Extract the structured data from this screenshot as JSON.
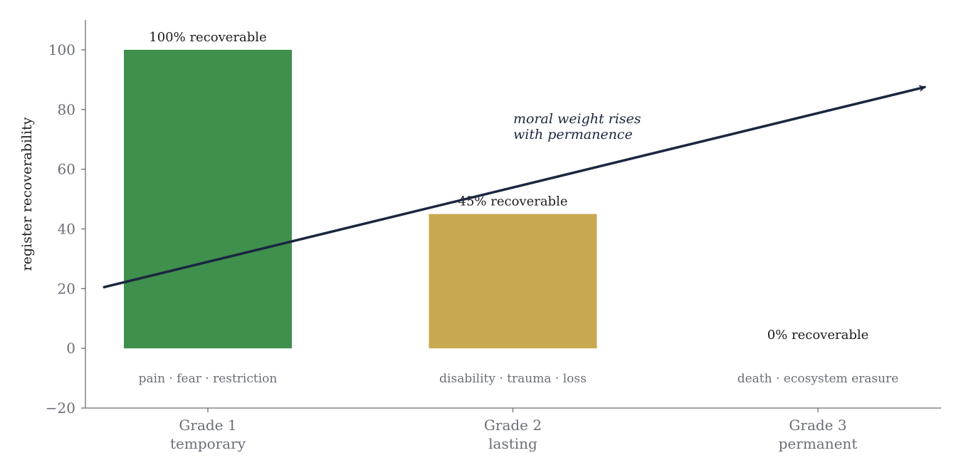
{
  "chart_data": {
    "type": "bar",
    "ylabel": "register recoverability",
    "xlabel": "",
    "ylim": [
      -20,
      110
    ],
    "yticks": [
      -20,
      0,
      20,
      40,
      60,
      80,
      100
    ],
    "grid": false,
    "categories": [
      {
        "title": "Grade 1",
        "subtitle": "temporary"
      },
      {
        "title": "Grade 2",
        "subtitle": "lasting"
      },
      {
        "title": "Grade 3",
        "subtitle": "permanent"
      }
    ],
    "values": [
      100,
      45,
      0
    ],
    "colors": [
      "#3f8f4d",
      "#c8a850",
      "#b03a2e"
    ],
    "data_labels": [
      "100% recoverable",
      "45% recoverable",
      "0% recoverable"
    ],
    "sub_labels": [
      "pain · fear · restriction",
      "disability · trauma · loss",
      "death · ecosystem erasure"
    ],
    "annotation": {
      "lines": [
        "moral weight rises",
        "with permanence"
      ],
      "arrow_from": {
        "x": 0.35,
        "y": 20.5
      },
      "arrow_to": {
        "x": 2.35,
        "y": 87.5
      },
      "color": "#1b2640"
    }
  }
}
